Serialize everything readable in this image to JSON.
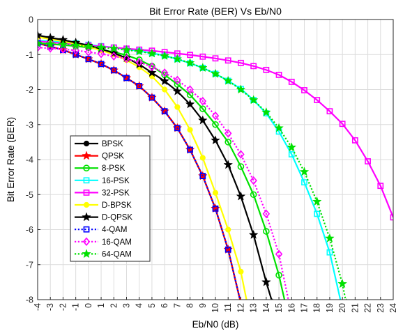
{
  "chart_data": {
    "type": "line",
    "title": "Bit Error Rate (BER) Vs Eb/N0",
    "xlabel": "Eb/N0 (dB)",
    "ylabel": "Bit Error Rate (BER)",
    "xlim": [
      -4,
      24
    ],
    "ylim": [
      -8,
      0
    ],
    "xticks": [
      "-4",
      "-3",
      "-2",
      "-1",
      "0",
      "1",
      "2",
      "3",
      "4",
      "5",
      "6",
      "7",
      "8",
      "9",
      "10",
      "11",
      "12",
      "13",
      "14",
      "15",
      "16",
      "17",
      "18",
      "19",
      "20",
      "21",
      "22",
      "23",
      "24"
    ],
    "yticks": [
      "0",
      "-1",
      "-2",
      "-3",
      "-4",
      "-5",
      "-6",
      "-7",
      "-8"
    ],
    "grid": true,
    "legend_position": "lower-left",
    "series": [
      {
        "name": "BPSK",
        "color": "#000000",
        "marker": "circle",
        "line": "solid",
        "x": [
          -4,
          -3,
          -2,
          -1,
          0,
          1,
          2,
          3,
          4,
          5,
          6,
          7,
          8,
          9,
          10,
          11,
          12
        ],
        "y": [
          -0.68,
          -0.77,
          -0.87,
          -1.0,
          -1.13,
          -1.27,
          -1.45,
          -1.67,
          -1.9,
          -2.23,
          -2.62,
          -3.1,
          -3.72,
          -4.47,
          -5.4,
          -6.57,
          -8.1
        ]
      },
      {
        "name": "QPSK",
        "color": "#ff0000",
        "marker": "star",
        "line": "solid",
        "x": [
          -4,
          -3,
          -2,
          -1,
          0,
          1,
          2,
          3,
          4,
          5,
          6,
          7,
          8,
          9,
          10,
          11,
          12
        ],
        "y": [
          -0.68,
          -0.77,
          -0.87,
          -1.0,
          -1.13,
          -1.27,
          -1.45,
          -1.67,
          -1.9,
          -2.23,
          -2.62,
          -3.1,
          -3.72,
          -4.47,
          -5.4,
          -6.57,
          -8.1
        ]
      },
      {
        "name": "8-PSK",
        "color": "#00e000",
        "marker": "circle-open",
        "line": "solid",
        "x": [
          -4,
          -3,
          -2,
          -1,
          0,
          1,
          2,
          3,
          4,
          5,
          6,
          7,
          8,
          9,
          10,
          11,
          12,
          13,
          14,
          15,
          15.5
        ],
        "y": [
          -0.67,
          -0.7,
          -0.73,
          -0.76,
          -0.8,
          -0.86,
          -0.93,
          -1.02,
          -1.15,
          -1.33,
          -1.58,
          -1.85,
          -2.15,
          -2.55,
          -3.0,
          -3.5,
          -4.2,
          -5.0,
          -6.05,
          -7.3,
          -8.1
        ]
      },
      {
        "name": "16-PSK",
        "color": "#00ffff",
        "marker": "square-open",
        "line": "solid",
        "x": [
          -4,
          -3,
          -2,
          -1,
          0,
          1,
          2,
          3,
          4,
          5,
          6,
          7,
          8,
          9,
          10,
          11,
          12,
          13,
          14,
          15,
          16,
          17,
          18,
          19,
          19.9
        ],
        "y": [
          -0.6,
          -0.62,
          -0.65,
          -0.68,
          -0.72,
          -0.76,
          -0.8,
          -0.85,
          -0.9,
          -0.96,
          -1.03,
          -1.13,
          -1.25,
          -1.38,
          -1.55,
          -1.75,
          -1.98,
          -2.3,
          -2.68,
          -3.2,
          -3.85,
          -4.65,
          -5.55,
          -6.65,
          -8.1
        ]
      },
      {
        "name": "32-PSK",
        "color": "#ff00ff",
        "marker": "square-open",
        "line": "solid",
        "x": [
          -4,
          -3,
          -2,
          -1,
          0,
          1,
          2,
          3,
          4,
          5,
          6,
          7,
          8,
          9,
          10,
          11,
          12,
          13,
          14,
          15,
          16,
          17,
          18,
          19,
          20,
          21,
          22,
          23,
          24
        ],
        "y": [
          -0.62,
          -0.65,
          -0.68,
          -0.71,
          -0.74,
          -0.77,
          -0.8,
          -0.83,
          -0.86,
          -0.89,
          -0.93,
          -0.97,
          -1.01,
          -1.06,
          -1.11,
          -1.17,
          -1.24,
          -1.33,
          -1.44,
          -1.58,
          -1.78,
          -2.02,
          -2.3,
          -2.62,
          -2.98,
          -3.45,
          -4.05,
          -4.75,
          -5.65
        ]
      },
      {
        "name": "D-BPSK",
        "color": "#ffff00",
        "marker": "circle",
        "line": "solid",
        "x": [
          -4,
          -3,
          -2,
          -1,
          0,
          1,
          2,
          3,
          4,
          5,
          6,
          7,
          8,
          9,
          10,
          11,
          12,
          12.5
        ],
        "y": [
          -0.5,
          -0.56,
          -0.62,
          -0.7,
          -0.78,
          -0.88,
          -1.0,
          -1.16,
          -1.36,
          -1.62,
          -2.0,
          -2.5,
          -3.15,
          -3.95,
          -4.95,
          -6.0,
          -7.2,
          -8.1
        ]
      },
      {
        "name": "D-QPSK",
        "color": "#000000",
        "marker": "star",
        "line": "solid",
        "x": [
          -4,
          -3,
          -2,
          -1,
          0,
          1,
          2,
          3,
          4,
          5,
          6,
          7,
          8,
          9,
          10,
          11,
          12,
          13,
          14,
          14.5
        ],
        "y": [
          -0.45,
          -0.52,
          -0.58,
          -0.66,
          -0.74,
          -0.84,
          -0.96,
          -1.1,
          -1.28,
          -1.52,
          -1.76,
          -2.05,
          -2.42,
          -2.88,
          -3.45,
          -4.15,
          -5.05,
          -6.15,
          -7.5,
          -8.1
        ]
      },
      {
        "name": "4-QAM",
        "color": "#0000ff",
        "marker": "square-open",
        "line": "dotted",
        "x": [
          -4,
          -3,
          -2,
          -1,
          0,
          1,
          2,
          3,
          4,
          5,
          6,
          7,
          8,
          9,
          10,
          11,
          12
        ],
        "y": [
          -0.68,
          -0.77,
          -0.87,
          -1.0,
          -1.13,
          -1.27,
          -1.45,
          -1.67,
          -1.9,
          -2.23,
          -2.62,
          -3.1,
          -3.72,
          -4.47,
          -5.4,
          -6.57,
          -8.1
        ]
      },
      {
        "name": "16-QAM",
        "color": "#ff00ff",
        "marker": "diamond-open",
        "line": "dotted",
        "x": [
          -4,
          -3,
          -2,
          -1,
          0,
          1,
          2,
          3,
          4,
          5,
          6,
          7,
          8,
          9,
          10,
          11,
          12,
          13,
          14,
          15,
          15.8
        ],
        "y": [
          -0.8,
          -0.82,
          -0.85,
          -0.88,
          -0.93,
          -0.98,
          -1.05,
          -1.12,
          -1.22,
          -1.35,
          -1.52,
          -1.73,
          -2.0,
          -2.33,
          -2.75,
          -3.25,
          -3.85,
          -4.6,
          -5.55,
          -6.7,
          -8.1
        ]
      },
      {
        "name": "64-QAM",
        "color": "#00e000",
        "marker": "star",
        "line": "dotted",
        "x": [
          -4,
          -3,
          -2,
          -1,
          0,
          1,
          2,
          3,
          4,
          5,
          6,
          7,
          8,
          9,
          10,
          11,
          12,
          13,
          14,
          15,
          16,
          17,
          18,
          19,
          20,
          20.3
        ],
        "y": [
          -0.68,
          -0.7,
          -0.72,
          -0.74,
          -0.77,
          -0.8,
          -0.83,
          -0.87,
          -0.91,
          -0.97,
          -1.04,
          -1.13,
          -1.24,
          -1.38,
          -1.55,
          -1.75,
          -2.0,
          -2.3,
          -2.65,
          -3.1,
          -3.65,
          -4.35,
          -5.2,
          -6.25,
          -7.55,
          -8.1
        ]
      }
    ]
  }
}
